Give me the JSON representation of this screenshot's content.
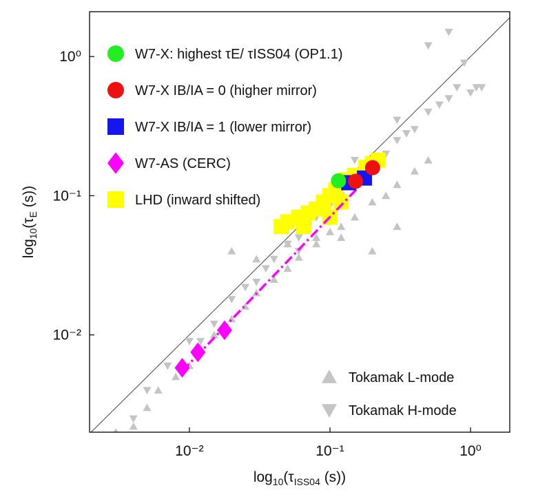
{
  "chart_data": {
    "type": "scatter",
    "x_label": [
      "log",
      "10",
      "(τ",
      "ISS04",
      " (s))"
    ],
    "y_label": [
      "log",
      "10",
      "(τ",
      "E",
      " (s))"
    ],
    "xscale": "log",
    "yscale": "log",
    "xlim": [
      0.00195,
      1.9
    ],
    "ylim": [
      0.002,
      2.1
    ],
    "xticks": [
      {
        "value": 0.01,
        "label": "10⁻²"
      },
      {
        "value": 0.1,
        "label": "10⁻¹"
      },
      {
        "value": 1,
        "label": "10⁰"
      }
    ],
    "yticks": [
      {
        "value": 0.01,
        "label": "10⁻²"
      },
      {
        "value": 0.1,
        "label": "10⁻¹"
      },
      {
        "value": 1,
        "label": "10⁰"
      }
    ],
    "diagonal": true,
    "series": [
      {
        "name": "W7-X: highest τE/ τISS04 (OP1.1)",
        "marker": "circle",
        "color": "#22ee22",
        "legend": "upper left",
        "x": [
          0.115
        ],
        "y": [
          0.128
        ]
      },
      {
        "name": "W7-X IB/IA = 0 (higher mirror)",
        "marker": "circle",
        "color": "#ee1111",
        "legend": "upper left",
        "x": [
          0.152,
          0.201
        ],
        "y": [
          0.127,
          0.159
        ]
      },
      {
        "name": "W7-X IB/IA = 1 (lower mirror)",
        "marker": "square",
        "color": "#1515ee",
        "legend": "upper left",
        "x": [
          0.136,
          0.176
        ],
        "y": [
          0.124,
          0.134
        ]
      },
      {
        "name": "W7-AS (CERC)",
        "marker": "diamond",
        "color": "#ff00ff",
        "legend": "upper left",
        "x": [
          0.0089,
          0.0115,
          0.0178
        ],
        "y": [
          0.0058,
          0.0075,
          0.0108
        ]
      },
      {
        "name": "LHD (inward shifted)",
        "marker": "square",
        "color": "#ffff00",
        "legend": "upper left",
        "x": [
          0.045,
          0.05,
          0.06,
          0.065,
          0.07,
          0.08,
          0.09,
          0.1,
          0.11,
          0.13,
          0.15,
          0.18,
          0.2,
          0.22,
          0.1,
          0.12
        ],
        "y": [
          0.06,
          0.065,
          0.07,
          0.06,
          0.075,
          0.08,
          0.09,
          0.1,
          0.11,
          0.13,
          0.14,
          0.16,
          0.17,
          0.18,
          0.07,
          0.09
        ]
      },
      {
        "name": "Tokamak L-mode",
        "marker": "triangle-up",
        "color": "#c4c4c4",
        "legend": "lower right",
        "x": [
          0.003,
          0.004,
          0.005,
          0.006,
          0.008,
          0.01,
          0.012,
          0.015,
          0.02,
          0.025,
          0.03,
          0.04,
          0.05,
          0.06,
          0.08,
          0.1,
          0.12,
          0.15,
          0.2,
          0.25,
          0.3,
          0.4,
          0.5,
          0.02,
          0.03,
          0.05,
          0.08,
          0.12,
          0.2,
          0.3
        ],
        "y": [
          0.002,
          0.0022,
          0.003,
          0.004,
          0.005,
          0.006,
          0.008,
          0.01,
          0.013,
          0.016,
          0.02,
          0.025,
          0.03,
          0.036,
          0.045,
          0.055,
          0.06,
          0.07,
          0.09,
          0.1,
          0.12,
          0.15,
          0.18,
          0.04,
          0.035,
          0.045,
          0.05,
          0.05,
          0.04,
          0.06
        ]
      },
      {
        "name": "Tokamak H-mode",
        "marker": "triangle-down",
        "color": "#c4c4c4",
        "legend": "lower right",
        "x": [
          0.004,
          0.005,
          0.007,
          0.01,
          0.012,
          0.015,
          0.02,
          0.025,
          0.03,
          0.035,
          0.04,
          0.05,
          0.06,
          0.07,
          0.08,
          0.09,
          0.1,
          0.12,
          0.15,
          0.18,
          0.2,
          0.25,
          0.3,
          0.35,
          0.4,
          0.5,
          0.6,
          0.7,
          0.8,
          1.0,
          1.1,
          1.2,
          0.5,
          0.7,
          0.9,
          0.3,
          0.15,
          0.06
        ],
        "y": [
          0.0025,
          0.004,
          0.006,
          0.009,
          0.009,
          0.012,
          0.018,
          0.022,
          0.024,
          0.03,
          0.035,
          0.045,
          0.05,
          0.06,
          0.07,
          0.075,
          0.085,
          0.1,
          0.12,
          0.15,
          0.17,
          0.2,
          0.25,
          0.28,
          0.3,
          0.4,
          0.45,
          0.5,
          0.6,
          0.55,
          0.6,
          0.6,
          1.2,
          1.5,
          0.9,
          0.35,
          0.18,
          0.04
        ]
      }
    ],
    "fit_line": {
      "color": "#ff00ff",
      "x": [
        0.0089,
        0.213
      ],
      "y": [
        0.0055,
        0.156
      ]
    }
  }
}
